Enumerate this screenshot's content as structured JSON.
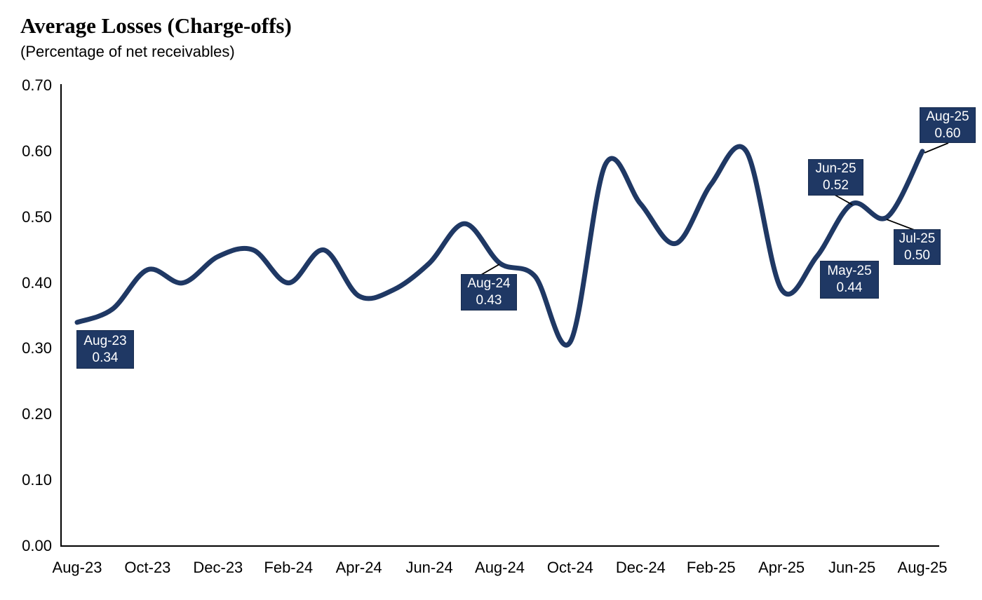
{
  "title": "Average Losses (Charge-offs)",
  "subtitle": "(Percentage of net receivables)",
  "colors": {
    "line": "#1f3864",
    "callout_bg": "#1f3864",
    "callout_border": "#182c4e",
    "callout_text": "#ffffff",
    "axis": "#000000",
    "leader": "#000000",
    "background": "#ffffff",
    "text": "#000000"
  },
  "chart_data": {
    "type": "line",
    "title": "Average Losses (Charge-offs)",
    "subtitle": "(Percentage of net receivables)",
    "x": [
      "Aug-23",
      "Sep-23",
      "Oct-23",
      "Nov-23",
      "Dec-23",
      "Jan-24",
      "Feb-24",
      "Mar-24",
      "Apr-24",
      "May-24",
      "Jun-24",
      "Jul-24",
      "Aug-24",
      "Sep-24",
      "Oct-24",
      "Nov-24",
      "Dec-24",
      "Jan-25",
      "Feb-25",
      "Mar-25",
      "Apr-25",
      "May-25",
      "Jun-25",
      "Jul-25",
      "Aug-25"
    ],
    "values": [
      0.34,
      0.36,
      0.42,
      0.4,
      0.44,
      0.45,
      0.4,
      0.45,
      0.38,
      0.39,
      0.43,
      0.49,
      0.43,
      0.41,
      0.31,
      0.58,
      0.52,
      0.46,
      0.55,
      0.6,
      0.39,
      0.44,
      0.52,
      0.5,
      0.6
    ],
    "x_tick_labels": [
      "Aug-23",
      "Oct-23",
      "Dec-23",
      "Feb-24",
      "Apr-24",
      "Jun-24",
      "Aug-24",
      "Oct-24",
      "Dec-24",
      "Feb-25",
      "Apr-25",
      "Jun-25",
      "Aug-25"
    ],
    "y_tick_labels": [
      "0.00",
      "0.10",
      "0.20",
      "0.30",
      "0.40",
      "0.50",
      "0.60",
      "0.70"
    ],
    "ylim": [
      0,
      0.7
    ],
    "grid": false,
    "legend": "none",
    "smooth": true,
    "annotations": [
      {
        "label": "Aug-23",
        "value": "0.34"
      },
      {
        "label": "Aug-24",
        "value": "0.43"
      },
      {
        "label": "May-25",
        "value": "0.44"
      },
      {
        "label": "Jun-25",
        "value": "0.52"
      },
      {
        "label": "Jul-25",
        "value": "0.50"
      },
      {
        "label": "Aug-25",
        "value": "0.60"
      }
    ]
  }
}
